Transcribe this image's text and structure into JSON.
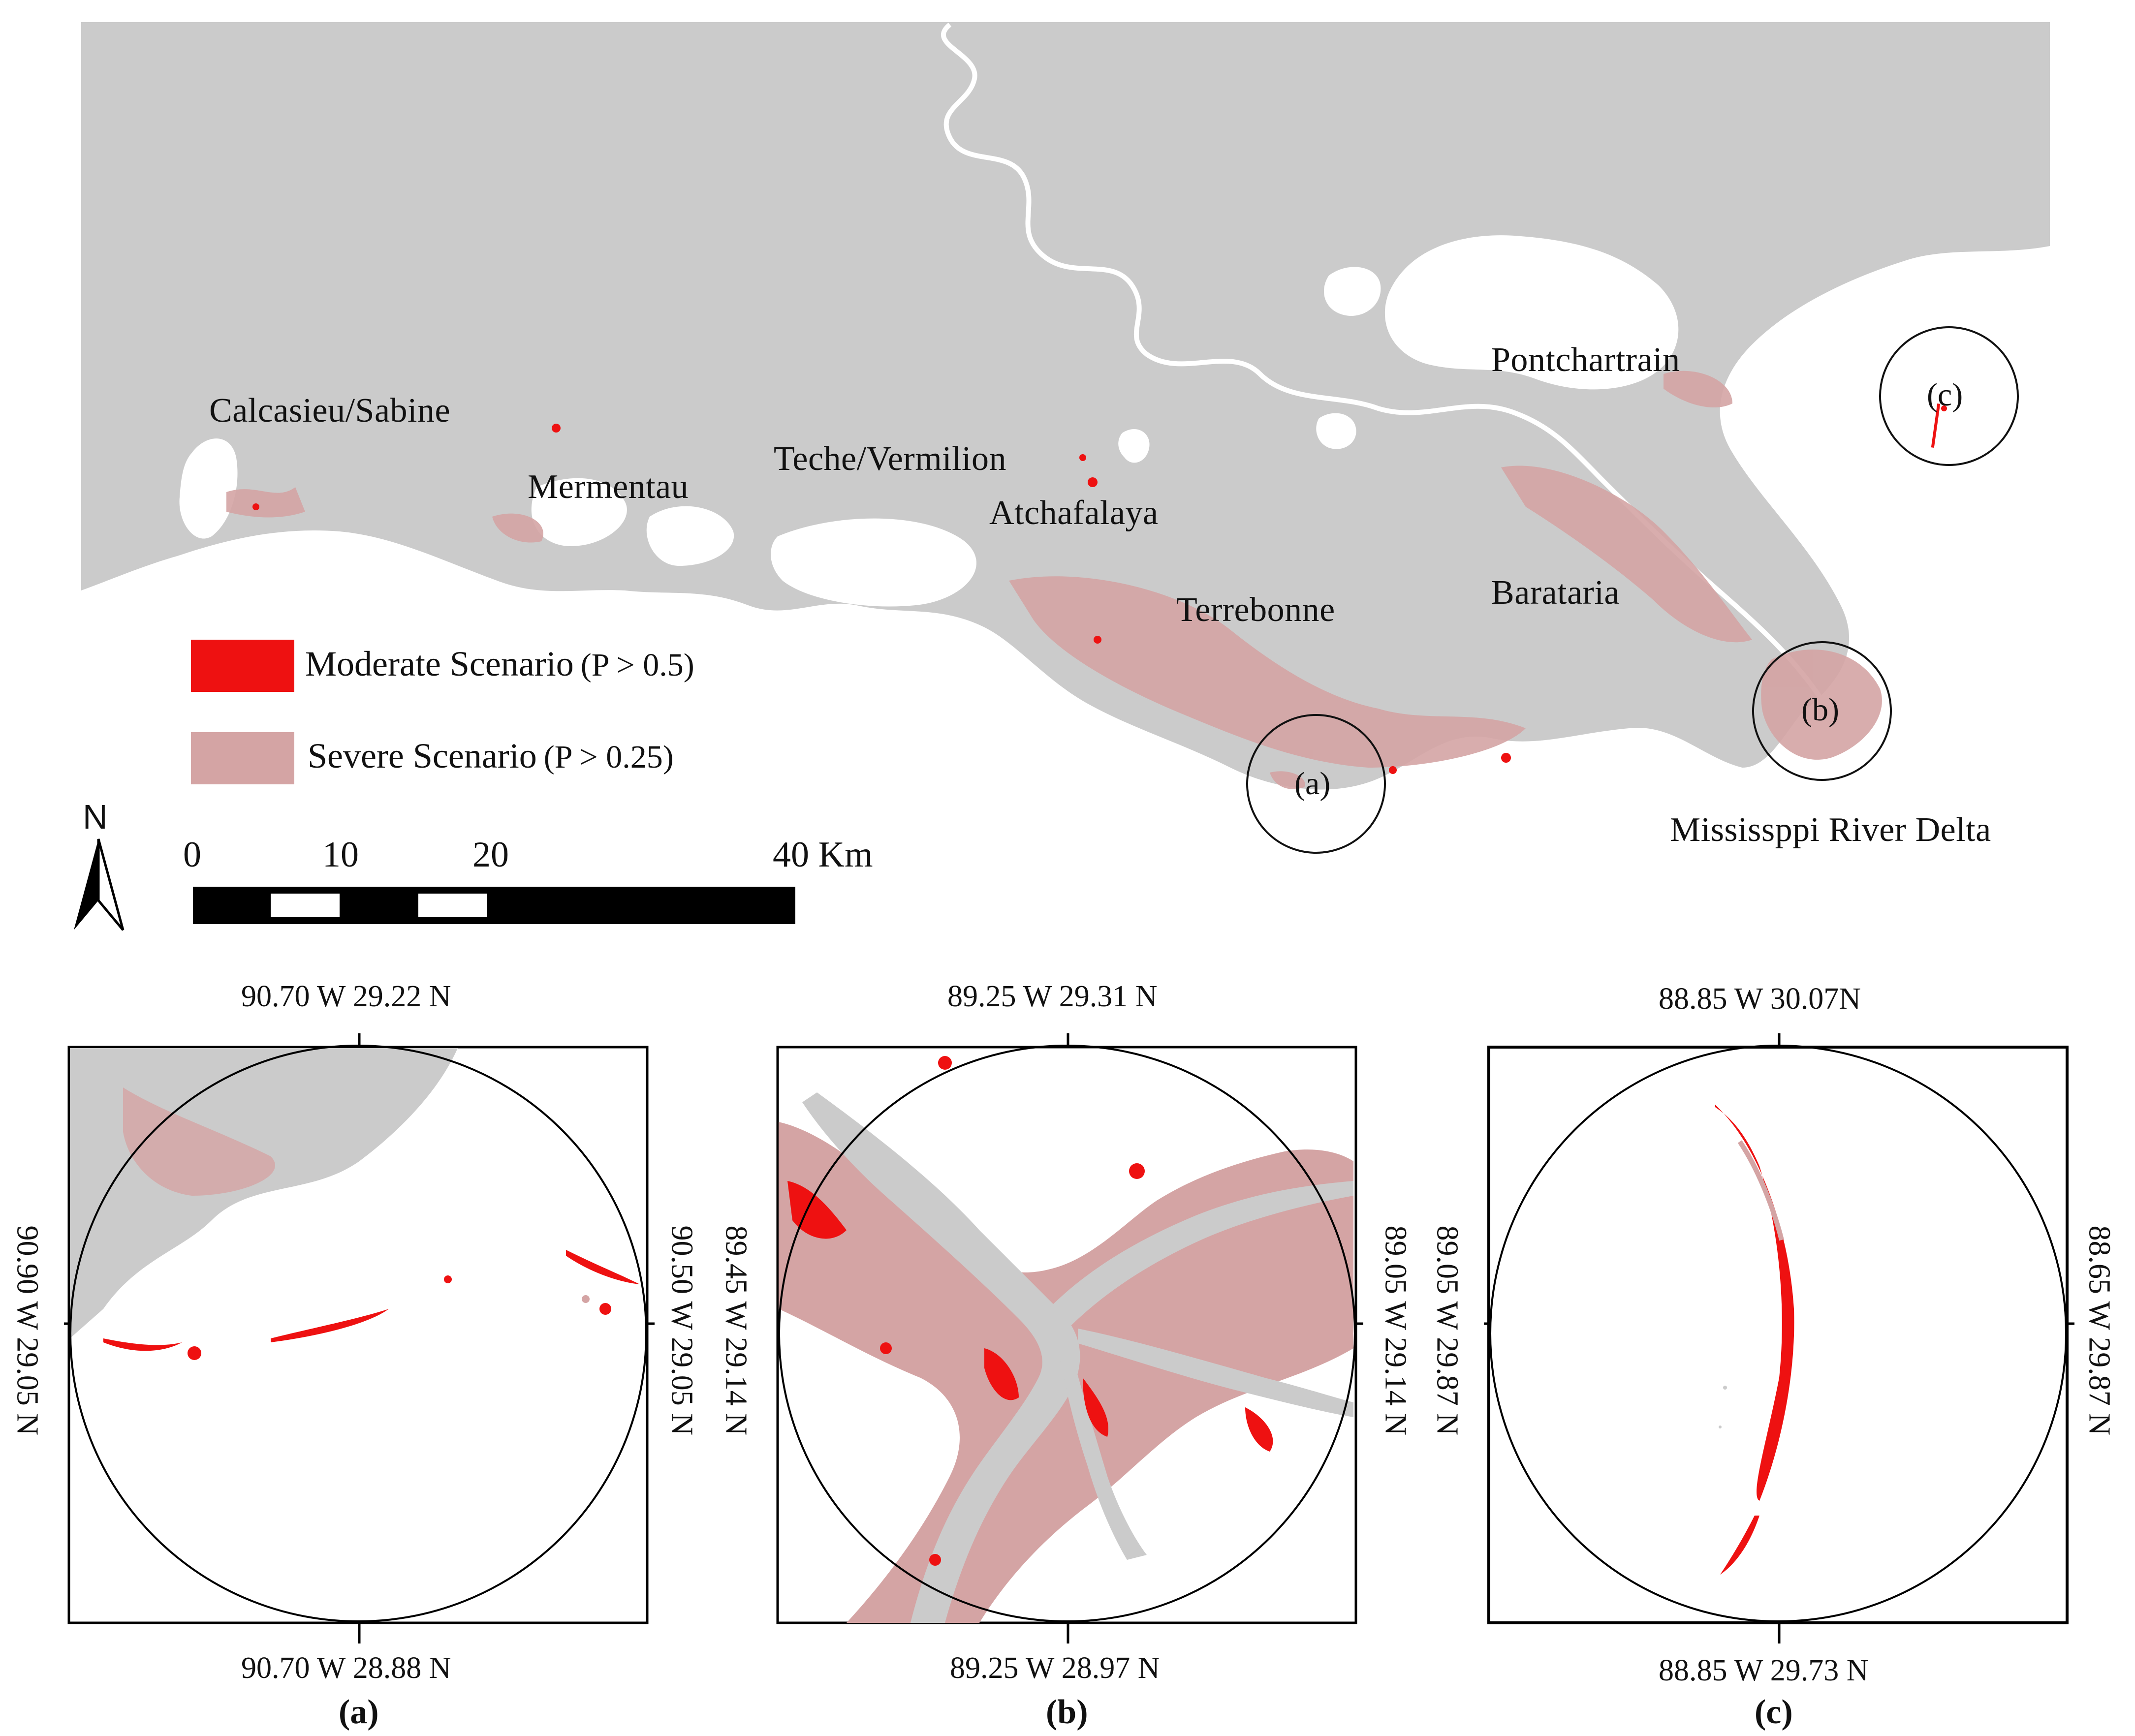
{
  "main_map": {
    "region_labels": {
      "calcasieu": "Calcasieu/Sabine",
      "mermentau": "Mermentau",
      "teche": "Teche/Vermilion",
      "atchafalaya": "Atchafalaya",
      "terrebonne": "Terrebonne",
      "barataria": "Barataria",
      "pontchartrain": "Pontchartrain",
      "delta": "Mississppi River Delta"
    },
    "circle_labels": {
      "a": "(a)",
      "b": "(b)",
      "c": "(c)"
    }
  },
  "legend": {
    "moderate": {
      "label": "Moderate Scenario",
      "threshold": "(P > 0.5)",
      "color": "#ee1111"
    },
    "severe": {
      "label": "Severe Scenario",
      "threshold": "(P > 0.25)",
      "color": "#d4a4a4"
    }
  },
  "north_arrow": {
    "label": "N"
  },
  "scale_bar": {
    "ticks": [
      "0",
      "10",
      "20",
      "40 Km"
    ]
  },
  "colors": {
    "land": "#cbcbcb",
    "water": "#ffffff",
    "moderate": "#ee1111",
    "severe": "#d4a4a4"
  },
  "panels": [
    {
      "caption": "(a)",
      "top": "90.70 W 29.22 N",
      "bottom": "90.70 W 28.88 N",
      "left": "90.90 W 29.05 N",
      "right": "90.50 W 29.05 N"
    },
    {
      "caption": "(b)",
      "top": "89.25 W 29.31 N",
      "bottom": "89.25 W 28.97 N",
      "left": "89.45 W 29.14 N",
      "right": "89.05 W 29.14 N"
    },
    {
      "caption": "(c)",
      "top": "88.85 W 30.07N",
      "bottom": "88.85 W 29.73 N",
      "left": "89.05 W 29.87 N",
      "right": "88.65 W 29.87 N"
    }
  ]
}
